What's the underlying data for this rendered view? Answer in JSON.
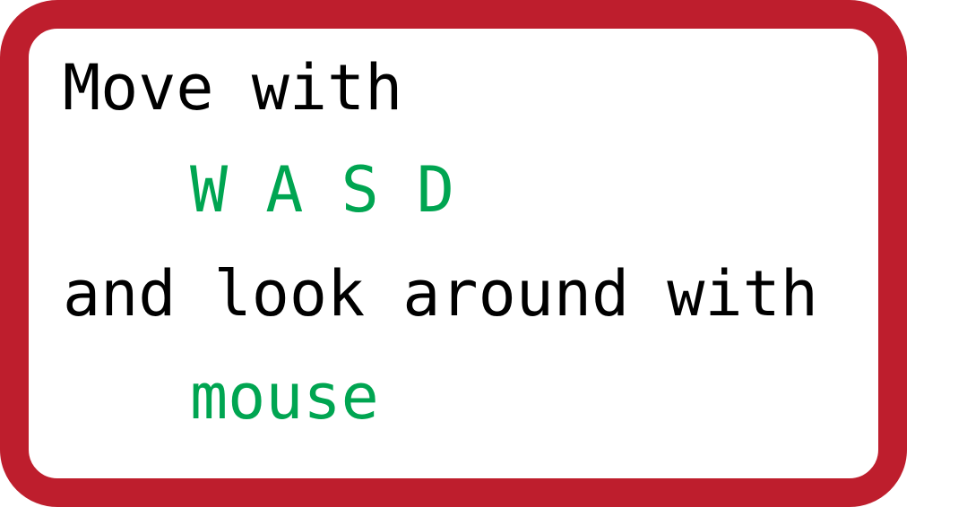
{
  "instructions": {
    "line1": "Move with",
    "keys": "W A S D",
    "line3": "and look around with",
    "input": "mouse"
  },
  "colors": {
    "border": "#be1e2d",
    "highlight": "#00a551",
    "text": "#000000",
    "background": "#ffffff"
  }
}
